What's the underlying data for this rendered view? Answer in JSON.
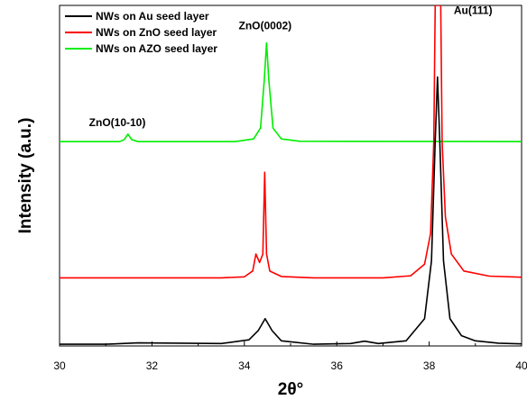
{
  "chart_data": {
    "type": "line",
    "xlabel": "2θ°",
    "ylabel": "Intensity (a.u.)",
    "xlim": [
      30,
      40
    ],
    "ylim": [
      0,
      100
    ],
    "xticks": [
      "30",
      "32",
      "34",
      "36",
      "38",
      "40"
    ],
    "grid": false,
    "legend_position": "top-left",
    "series": [
      {
        "name": "NWs on Au seed layer",
        "color": "#000000",
        "x": [
          30.0,
          31.0,
          31.7,
          33.5,
          34.1,
          34.3,
          34.45,
          34.6,
          34.8,
          35.5,
          36.3,
          36.6,
          36.9,
          37.5,
          37.9,
          38.05,
          38.13,
          38.18,
          38.23,
          38.31,
          38.45,
          38.7,
          39.0,
          39.5,
          40.0
        ],
        "y": [
          0.5,
          0.5,
          0.9,
          0.7,
          1.8,
          4.5,
          8.0,
          4.5,
          1.5,
          0.5,
          0.7,
          1.4,
          0.7,
          1.5,
          8.0,
          25.0,
          60.0,
          79.0,
          60.0,
          25.0,
          8.0,
          3.0,
          1.5,
          0.8,
          0.6
        ]
      },
      {
        "name": "NWs on ZnO seed layer",
        "color": "#ff0000",
        "x": [
          30.0,
          33.5,
          34.0,
          34.18,
          34.25,
          34.33,
          34.4,
          34.44,
          34.48,
          34.55,
          34.8,
          35.5,
          37.0,
          37.6,
          37.9,
          38.03,
          38.1,
          38.13,
          38.25,
          38.28,
          38.35,
          38.48,
          38.75,
          39.3,
          40.0
        ],
        "y": [
          20.0,
          20.0,
          20.3,
          22.0,
          27.0,
          24.5,
          27.0,
          51.0,
          27.0,
          22.0,
          20.4,
          20.0,
          20.0,
          20.6,
          24.0,
          33.0,
          60.0,
          100.0,
          100.0,
          60.0,
          38.0,
          27.0,
          22.0,
          20.5,
          20.2
        ]
      },
      {
        "name": "NWs on AZO seed layer",
        "color": "#00ee00",
        "x": [
          30.0,
          31.3,
          31.4,
          31.48,
          31.56,
          31.7,
          33.8,
          34.2,
          34.35,
          34.43,
          34.48,
          34.53,
          34.62,
          34.8,
          35.2,
          40.0
        ],
        "y": [
          60.0,
          60.0,
          60.6,
          62.2,
          60.6,
          60.0,
          60.0,
          60.8,
          64.0,
          78.0,
          89.0,
          78.0,
          64.0,
          60.8,
          60.1,
          60.0
        ]
      }
    ],
    "annotations": [
      {
        "text": "ZnO(10-10)",
        "x": 31.25,
        "y": 64.5
      },
      {
        "text": "ZnO(0002)",
        "x": 34.45,
        "y": 93.0
      },
      {
        "text": "Au(111)",
        "x": 38.95,
        "y": 97.5
      }
    ]
  }
}
